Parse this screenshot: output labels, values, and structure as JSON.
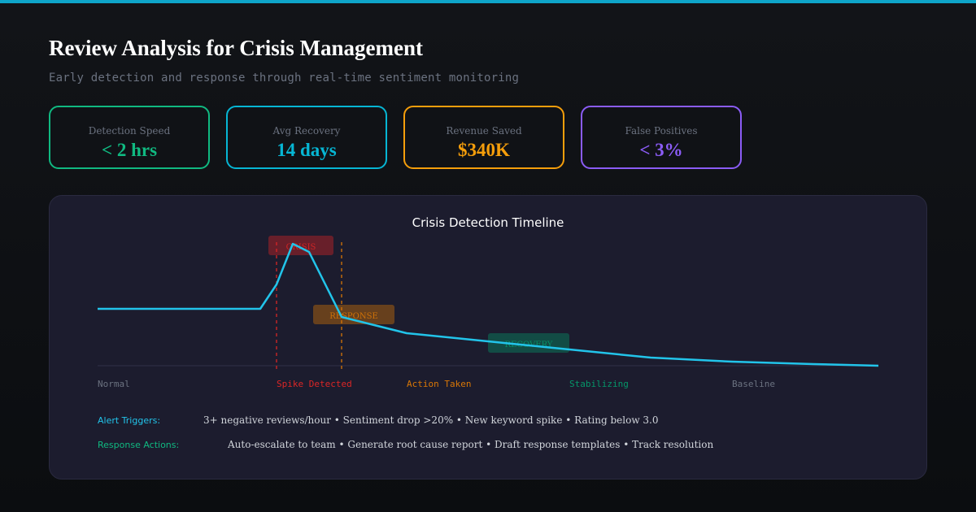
{
  "header": {
    "title": "Review Analysis for Crisis Management",
    "subtitle": "Early detection and response through real-time sentiment monitoring"
  },
  "metrics": [
    {
      "label": "Detection Speed",
      "value": "< 2 hrs",
      "color": "#10b981"
    },
    {
      "label": "Avg Recovery",
      "value": "14 days",
      "color": "#06b6d4"
    },
    {
      "label": "Revenue Saved",
      "value": "$340K",
      "color": "#f59e0b"
    },
    {
      "label": "False Positives",
      "value": "< 3%",
      "color": "#8b5cf6"
    }
  ],
  "chart_data": {
    "type": "line",
    "title": "Crisis Detection Timeline",
    "line_color": "#22c4ea",
    "phases": [
      {
        "label": "Normal",
        "color": "#6b7280"
      },
      {
        "label": "Spike Detected",
        "color": "#dc2626"
      },
      {
        "label": "Action Taken",
        "color": "#d97706"
      },
      {
        "label": "Stabilizing",
        "color": "#059669"
      },
      {
        "label": "Baseline",
        "color": "#6b7280"
      }
    ],
    "annotations": [
      {
        "label": "CRISIS",
        "color": "#dc2626"
      },
      {
        "label": "RESPONSE",
        "color": "#d97706"
      },
      {
        "label": "RECOVERY",
        "color": "#059669"
      }
    ],
    "markers": [
      {
        "name": "spike-marker",
        "color": "#dc2626"
      },
      {
        "name": "action-marker",
        "color": "#d97706"
      }
    ]
  },
  "footer": {
    "alert_label": "Alert Triggers:",
    "alert_text": "3+ negative reviews/hour • Sentiment drop >20% • New keyword spike • Rating below 3.0",
    "alert_color": "#22c4ea",
    "response_label": "Response Actions:",
    "response_text": "Auto-escalate to team • Generate root cause report • Draft response templates • Track resolution",
    "response_color": "#10b981"
  }
}
